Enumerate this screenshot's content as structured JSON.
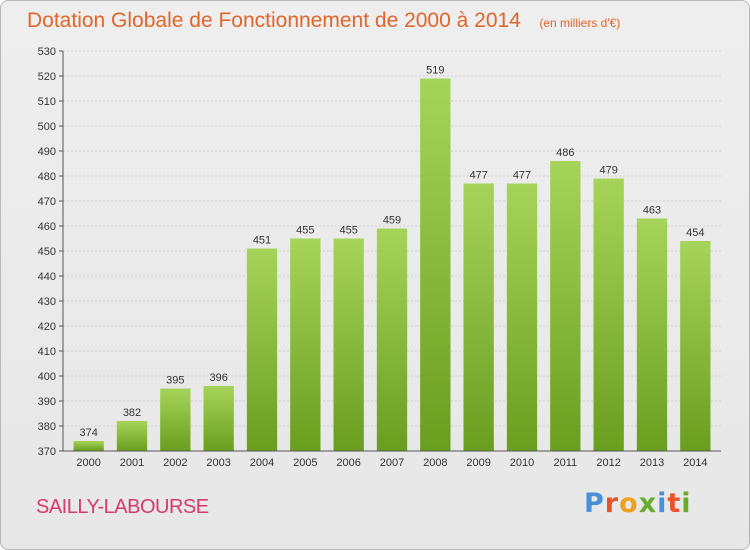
{
  "header": {
    "title": "Dotation Globale de Fonctionnement de 2000 à 2014",
    "subtitle": "(en milliers d'€)"
  },
  "footer": {
    "commune": "SAILLY-LABOURSE",
    "brand": "Proxiti",
    "brand_colors": [
      "#4a90d9",
      "#e8532b",
      "#f0a020",
      "#6aab2e",
      "#4a90d9",
      "#e8532b",
      "#6aab2e"
    ]
  },
  "colors": {
    "bar_light": "#a6d45a",
    "bar_dark": "#6a9e1f",
    "grid": "#d0d0d0",
    "axis": "#555555",
    "title": "#e0662a",
    "commune": "#d73a68"
  },
  "chart_data": {
    "type": "bar",
    "title": "Dotation Globale de Fonctionnement de 2000 à 2014",
    "subtitle": "(en milliers d'€)",
    "xlabel": "",
    "ylabel": "",
    "categories": [
      "2000",
      "2001",
      "2002",
      "2003",
      "2004",
      "2005",
      "2006",
      "2007",
      "2008",
      "2009",
      "2010",
      "2011",
      "2012",
      "2013",
      "2014"
    ],
    "values": [
      374,
      382,
      395,
      396,
      451,
      455,
      455,
      459,
      519,
      477,
      477,
      486,
      479,
      463,
      454
    ],
    "ylim": [
      370,
      530
    ],
    "ytick_step": 10,
    "grid": true,
    "legend": "none"
  }
}
